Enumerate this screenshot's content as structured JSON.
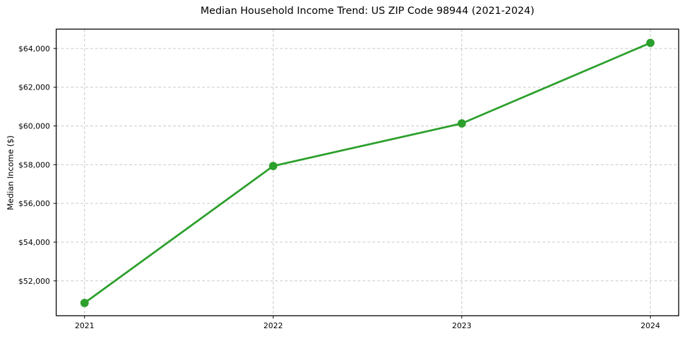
{
  "chart_data": {
    "type": "line",
    "title": "Median Household Income Trend: US ZIP Code 98944 (2021-2024)",
    "ylabel": "Median Income ($)",
    "xlabel": "",
    "categories": [
      "2021",
      "2022",
      "2023",
      "2024"
    ],
    "x": [
      2021,
      2022,
      2023,
      2024
    ],
    "series": [
      {
        "name": "Median Household Income",
        "values": [
          50860,
          57930,
          60130,
          64290
        ]
      }
    ],
    "xlim": [
      2020.85,
      2024.15
    ],
    "ylim": [
      50200,
      65000
    ],
    "yticks": [
      52000,
      54000,
      56000,
      58000,
      60000,
      62000,
      64000
    ],
    "ytick_labels": [
      "$52,000",
      "$54,000",
      "$56,000",
      "$58,000",
      "$60,000",
      "$62,000",
      "$64,000"
    ],
    "grid": true,
    "grid_style": "dashed",
    "legend_position": "none",
    "colors": {
      "line": "#2ca02c",
      "marker": "#2ca02c",
      "grid": "#c9c9c9",
      "spine": "#000000",
      "text": "#000000",
      "background": "#ffffff"
    }
  }
}
